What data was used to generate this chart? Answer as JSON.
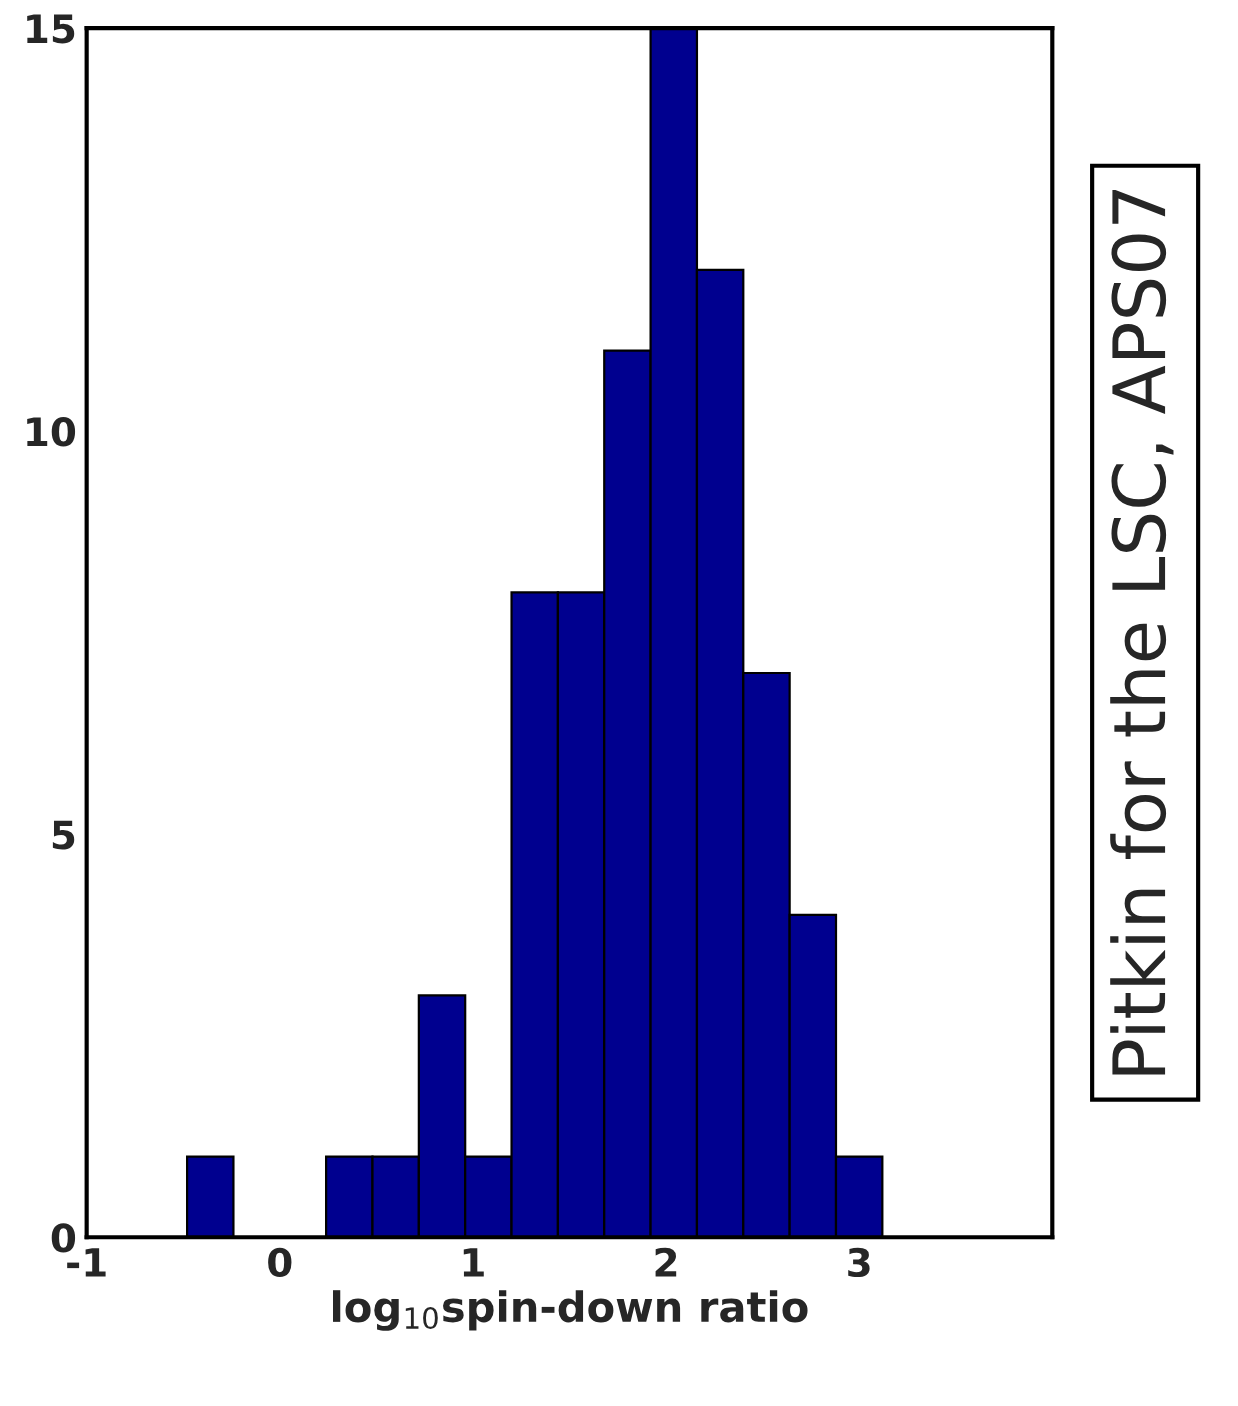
{
  "chart_data": {
    "type": "histogram",
    "bins": [
      -0.48,
      -0.24,
      0,
      0.24,
      0.48,
      0.72,
      0.96,
      1.2,
      1.44,
      1.68,
      1.92,
      2.16,
      2.4,
      2.64,
      2.88,
      3.12
    ],
    "values": [
      1,
      0,
      0,
      1,
      1,
      3,
      1,
      8,
      8,
      11,
      15,
      12,
      7,
      4,
      1
    ],
    "color": "#00008f",
    "xlim": [
      -1,
      4
    ],
    "xticks": [
      -1,
      0,
      1,
      2,
      3
    ],
    "ylim": [
      0,
      15
    ],
    "yticks": [
      0,
      5,
      10,
      15
    ],
    "xlabel": "log$_{10}$spin-down ratio",
    "annotations": [
      "Pitkin for the LSC, APS07"
    ],
    "grid": false
  }
}
